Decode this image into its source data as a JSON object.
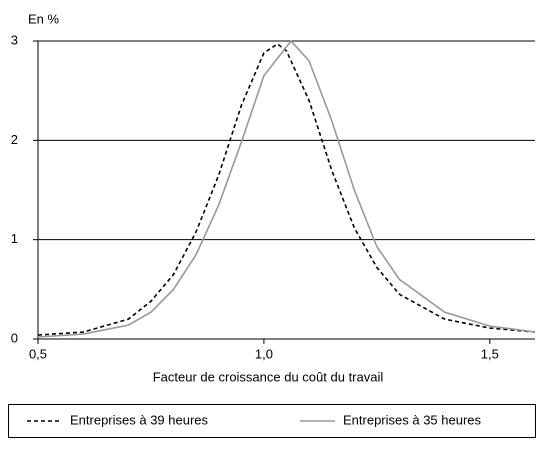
{
  "chart_data": {
    "type": "line",
    "y_label": "En %",
    "x_label": "Facteur de croissance du coût du travail",
    "xlim": [
      0.5,
      1.6
    ],
    "xticks": [
      {
        "value": 0.5,
        "label": "0,5"
      },
      {
        "value": 1.0,
        "label": "1,0"
      },
      {
        "value": 1.5,
        "label": "1,5"
      }
    ],
    "ylim": [
      0,
      3
    ],
    "yticks": [
      0,
      1,
      2,
      3
    ],
    "grid": true,
    "legend": "bottom",
    "series": [
      {
        "name": "Entreprises à 39 heures",
        "color": "#000000",
        "dash": true,
        "x": [
          0.5,
          0.6,
          0.7,
          0.75,
          0.8,
          0.85,
          0.9,
          0.95,
          1.0,
          1.03,
          1.05,
          1.1,
          1.15,
          1.2,
          1.25,
          1.3,
          1.4,
          1.5,
          1.6
        ],
        "values": [
          0.04,
          0.07,
          0.2,
          0.38,
          0.65,
          1.08,
          1.65,
          2.35,
          2.88,
          2.97,
          2.9,
          2.4,
          1.7,
          1.12,
          0.72,
          0.45,
          0.2,
          0.11,
          0.07
        ]
      },
      {
        "name": "Entreprises à 35 heures",
        "color": "#999999",
        "dash": false,
        "x": [
          0.5,
          0.6,
          0.7,
          0.75,
          0.8,
          0.85,
          0.9,
          0.95,
          1.0,
          1.06,
          1.1,
          1.15,
          1.2,
          1.25,
          1.3,
          1.4,
          1.5,
          1.6
        ],
        "values": [
          0.02,
          0.05,
          0.14,
          0.27,
          0.5,
          0.85,
          1.35,
          1.98,
          2.65,
          3.0,
          2.8,
          2.2,
          1.5,
          0.93,
          0.6,
          0.27,
          0.13,
          0.07
        ]
      }
    ]
  }
}
